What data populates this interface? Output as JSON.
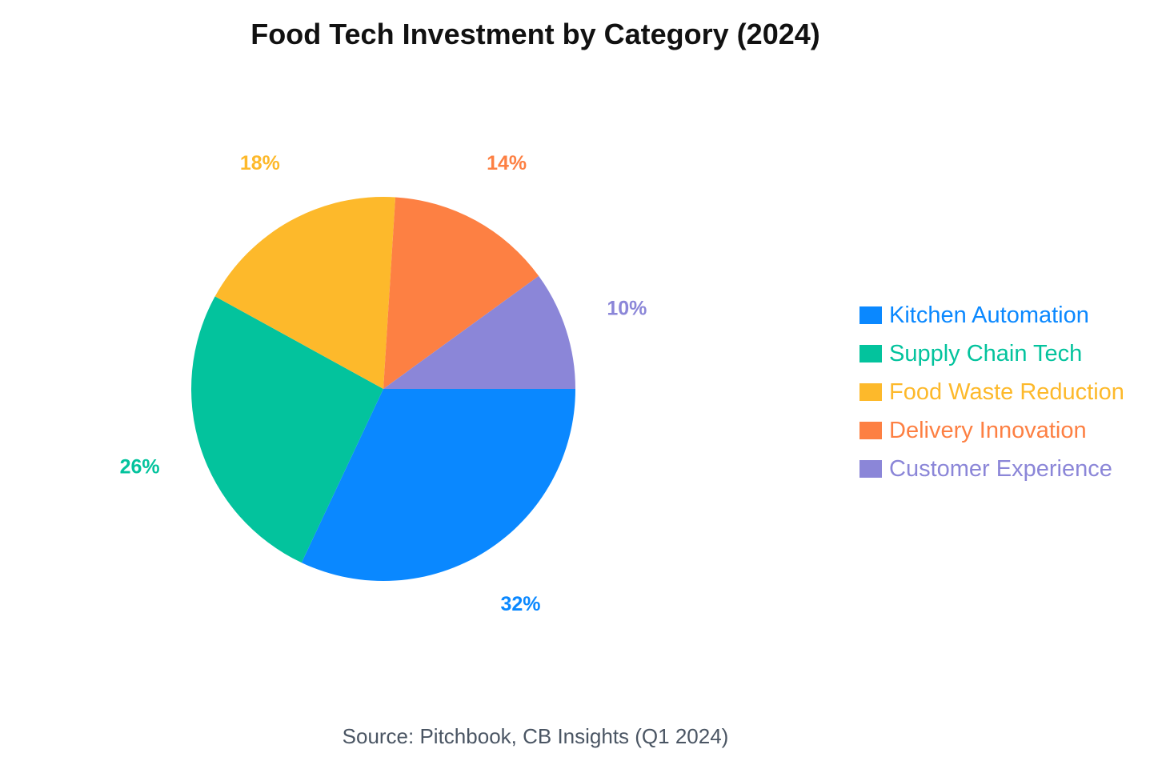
{
  "chart_data": {
    "type": "pie",
    "title": "Food Tech Investment by Category (2024)",
    "categories": [
      "Kitchen Automation",
      "Supply Chain Tech",
      "Food Waste Reduction",
      "Delivery Innovation",
      "Customer Experience"
    ],
    "values": [
      32,
      26,
      18,
      14,
      10
    ],
    "labels": [
      "32%",
      "26%",
      "18%",
      "14%",
      "10%"
    ],
    "colors": [
      "#0a88ff",
      "#03c39d",
      "#fdb92b",
      "#fd8043",
      "#8b86d8"
    ],
    "legend_position": "right",
    "source": "Source: Pitchbook, CB Insights (Q1 2024)"
  }
}
